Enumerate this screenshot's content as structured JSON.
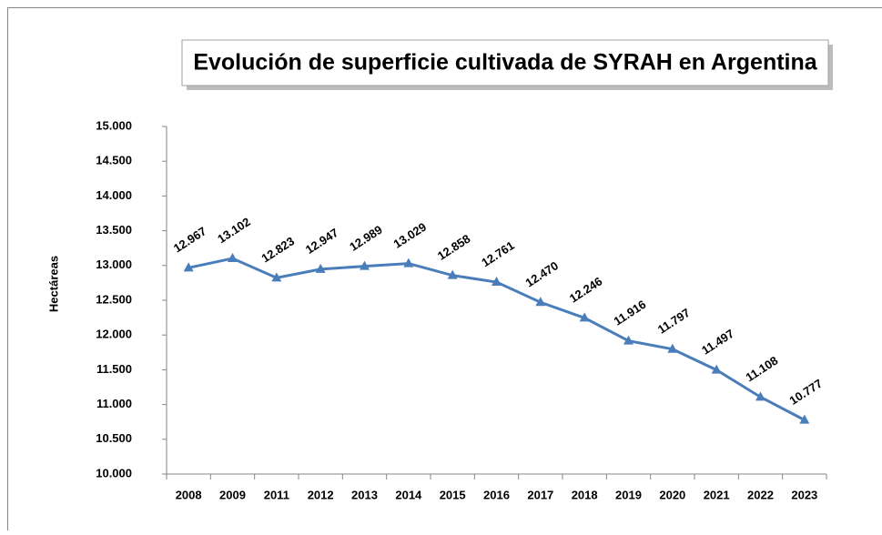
{
  "chart_data": {
    "type": "line",
    "title": "Evolución de superficie cultivada de SYRAH en Argentina",
    "y_label": "Hectáreas",
    "categories": [
      "2008",
      "2009",
      "2011",
      "2012",
      "2013",
      "2014",
      "2015",
      "2016",
      "2017",
      "2018",
      "2019",
      "2020",
      "2021",
      "2022",
      "2023"
    ],
    "values": [
      12967,
      13102,
      12823,
      12947,
      12989,
      13029,
      12858,
      12761,
      12470,
      12246,
      11916,
      11797,
      11497,
      11108,
      10777
    ],
    "value_labels": [
      "12.967",
      "13.102",
      "12.823",
      "12.947",
      "12.989",
      "13.029",
      "12.858",
      "12.761",
      "12.470",
      "12.246",
      "11.916",
      "11.797",
      "11.497",
      "11.108",
      "10.777"
    ],
    "color": "#4a7ebb",
    "ylim": [
      10000,
      15000
    ],
    "yticks": [
      {
        "value": 10000,
        "label": "10.000"
      },
      {
        "value": 10500,
        "label": "10.500"
      },
      {
        "value": 11000,
        "label": "11.000"
      },
      {
        "value": 11500,
        "label": "11.500"
      },
      {
        "value": 12000,
        "label": "12.000"
      },
      {
        "value": 12500,
        "label": "12.500"
      },
      {
        "value": 13000,
        "label": "13.000"
      },
      {
        "value": 13500,
        "label": "13.500"
      },
      {
        "value": 14000,
        "label": "14.000"
      },
      {
        "value": 14500,
        "label": "14.500"
      },
      {
        "value": 15000,
        "label": "15.000"
      }
    ]
  }
}
